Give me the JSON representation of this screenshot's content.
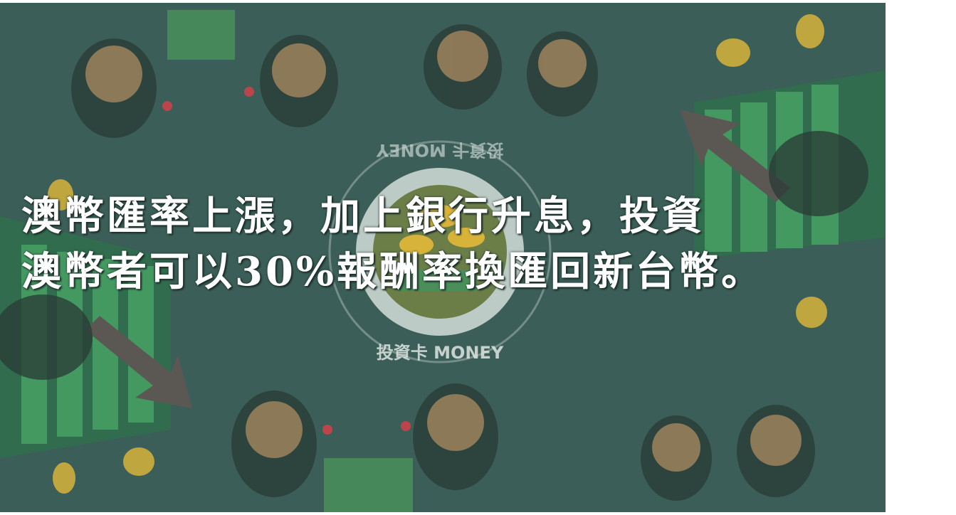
{
  "caption": {
    "line1": "澳幣匯率上漲，加上銀行升息，投資",
    "line2": "澳幣者可以30%報酬率換匯回新台幣。"
  },
  "seal": {
    "text_bottom": "投資卡 MONEY",
    "text_top": "投資卡 MONEY"
  },
  "colors": {
    "background": "#3b5f58",
    "seal_ring": "#dfe6e2",
    "coin": "#d8b33a",
    "arrow": "#5b5854",
    "chart_green": "#4aa566"
  }
}
